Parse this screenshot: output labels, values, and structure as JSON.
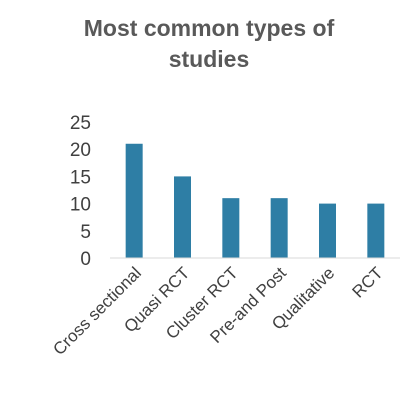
{
  "chart_data": {
    "type": "bar",
    "title": "Most common types of studies",
    "title_lines": [
      "Most common types of",
      "studies"
    ],
    "categories": [
      "Cross sectional",
      "Quasi RCT",
      "Cluster RCT",
      "Pre-and Post",
      "Qualitative",
      "RCT"
    ],
    "values": [
      21,
      15,
      11,
      11,
      10,
      10
    ],
    "xlabel": "",
    "ylabel": "",
    "ylim": [
      0,
      25
    ],
    "yticks": [
      0,
      5,
      10,
      15,
      20,
      25
    ],
    "grid": false,
    "legend": "none",
    "bar_color": "#2e7ea5"
  }
}
